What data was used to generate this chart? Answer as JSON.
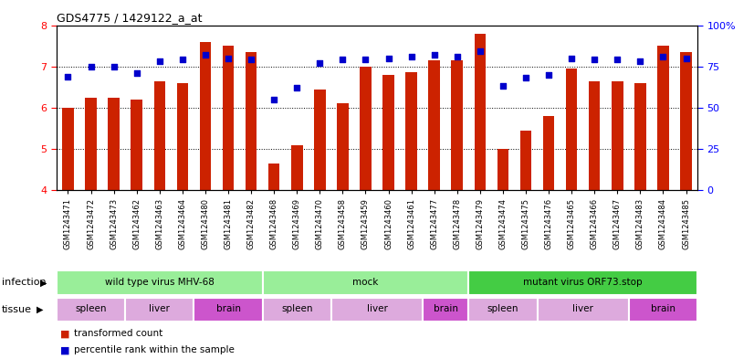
{
  "title": "GDS4775 / 1429122_a_at",
  "samples": [
    "GSM1243471",
    "GSM1243472",
    "GSM1243473",
    "GSM1243462",
    "GSM1243463",
    "GSM1243464",
    "GSM1243480",
    "GSM1243481",
    "GSM1243482",
    "GSM1243468",
    "GSM1243469",
    "GSM1243470",
    "GSM1243458",
    "GSM1243459",
    "GSM1243460",
    "GSM1243461",
    "GSM1243477",
    "GSM1243478",
    "GSM1243479",
    "GSM1243474",
    "GSM1243475",
    "GSM1243476",
    "GSM1243465",
    "GSM1243466",
    "GSM1243467",
    "GSM1243483",
    "GSM1243484",
    "GSM1243485"
  ],
  "bar_values": [
    6.0,
    6.25,
    6.25,
    6.2,
    6.65,
    6.6,
    7.6,
    7.5,
    7.35,
    4.65,
    5.1,
    6.45,
    6.1,
    7.0,
    6.8,
    6.85,
    7.15,
    7.15,
    7.8,
    5.0,
    5.45,
    5.8,
    6.95,
    6.65,
    6.65,
    6.6,
    7.5,
    7.35
  ],
  "dot_values": [
    69,
    75,
    75,
    71,
    78,
    79,
    82,
    80,
    79,
    55,
    62,
    77,
    79,
    79,
    80,
    81,
    82,
    81,
    84,
    63,
    68,
    70,
    80,
    79,
    79,
    78,
    81,
    80
  ],
  "ylim_left": [
    4,
    8
  ],
  "ylim_right": [
    0,
    100
  ],
  "yticks_left": [
    4,
    5,
    6,
    7,
    8
  ],
  "yticks_right": [
    0,
    25,
    50,
    75,
    100
  ],
  "bar_color": "#cc2200",
  "dot_color": "#0000cc",
  "inf_colors": [
    "#99ee99",
    "#99ee99",
    "#44cc44"
  ],
  "infection_groups": [
    {
      "label": "wild type virus MHV-68",
      "start": 0,
      "end": 9
    },
    {
      "label": "mock",
      "start": 9,
      "end": 18
    },
    {
      "label": "mutant virus ORF73.stop",
      "start": 18,
      "end": 28
    }
  ],
  "tissue_groups": [
    {
      "label": "spleen",
      "start": 0,
      "end": 3,
      "type": "light"
    },
    {
      "label": "liver",
      "start": 3,
      "end": 6,
      "type": "light"
    },
    {
      "label": "brain",
      "start": 6,
      "end": 9,
      "type": "dark"
    },
    {
      "label": "spleen",
      "start": 9,
      "end": 12,
      "type": "light"
    },
    {
      "label": "liver",
      "start": 12,
      "end": 16,
      "type": "light"
    },
    {
      "label": "brain",
      "start": 16,
      "end": 18,
      "type": "dark"
    },
    {
      "label": "spleen",
      "start": 18,
      "end": 21,
      "type": "light"
    },
    {
      "label": "liver",
      "start": 21,
      "end": 25,
      "type": "light"
    },
    {
      "label": "brain",
      "start": 25,
      "end": 28,
      "type": "dark"
    }
  ],
  "tissue_light": "#ddaadd",
  "tissue_dark": "#cc55cc",
  "infection_label": "infection",
  "tissue_label": "tissue",
  "legend_bar": "transformed count",
  "legend_dot": "percentile rank within the sample"
}
